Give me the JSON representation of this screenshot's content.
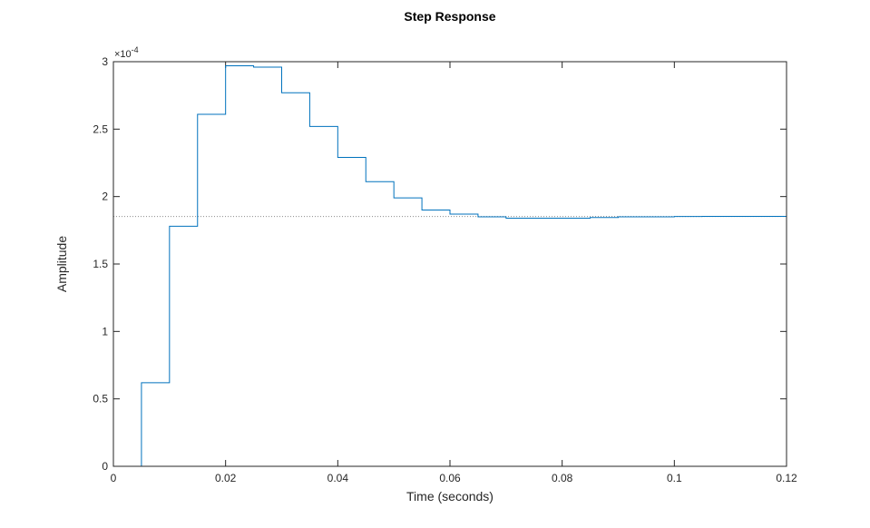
{
  "chart_data": {
    "type": "line",
    "subtype": "step",
    "title": "Step Response",
    "xlabel": "Time (seconds)",
    "ylabel": "Amplitude",
    "xlim": [
      0,
      0.12
    ],
    "ylim": [
      0,
      3
    ],
    "y_multiplier_label": "×10",
    "y_multiplier_exponent": "-4",
    "xticks": [
      0,
      0.02,
      0.04,
      0.06,
      0.08,
      0.1,
      0.12
    ],
    "xtick_labels": [
      "0",
      "0.02",
      "0.04",
      "0.06",
      "0.08",
      "0.1",
      "0.12"
    ],
    "yticks": [
      0,
      0.5,
      1,
      1.5,
      2,
      2.5,
      3
    ],
    "ytick_labels": [
      "0",
      "0.5",
      "1",
      "1.5",
      "2",
      "2.5",
      "3"
    ],
    "grid": false,
    "steady_state": 1.852,
    "colors": {
      "series": "#0072BD",
      "axes": "#262626",
      "steady_state_line": "#8c8c8c"
    },
    "series": [
      {
        "x": [
          0,
          0.005,
          0.01,
          0.015,
          0.02,
          0.025,
          0.03,
          0.035,
          0.04,
          0.045,
          0.05,
          0.055,
          0.06,
          0.065,
          0.07,
          0.075,
          0.08,
          0.085,
          0.09,
          0.095,
          0.1,
          0.105,
          0.11,
          0.115,
          0.12
        ],
        "y": [
          0,
          0.62,
          1.78,
          2.61,
          2.97,
          2.96,
          2.77,
          2.52,
          2.29,
          2.11,
          1.99,
          1.9,
          1.87,
          1.85,
          1.84,
          1.84,
          1.84,
          1.845,
          1.85,
          1.85,
          1.852,
          1.853,
          1.853,
          1.853,
          1.853
        ]
      }
    ]
  }
}
